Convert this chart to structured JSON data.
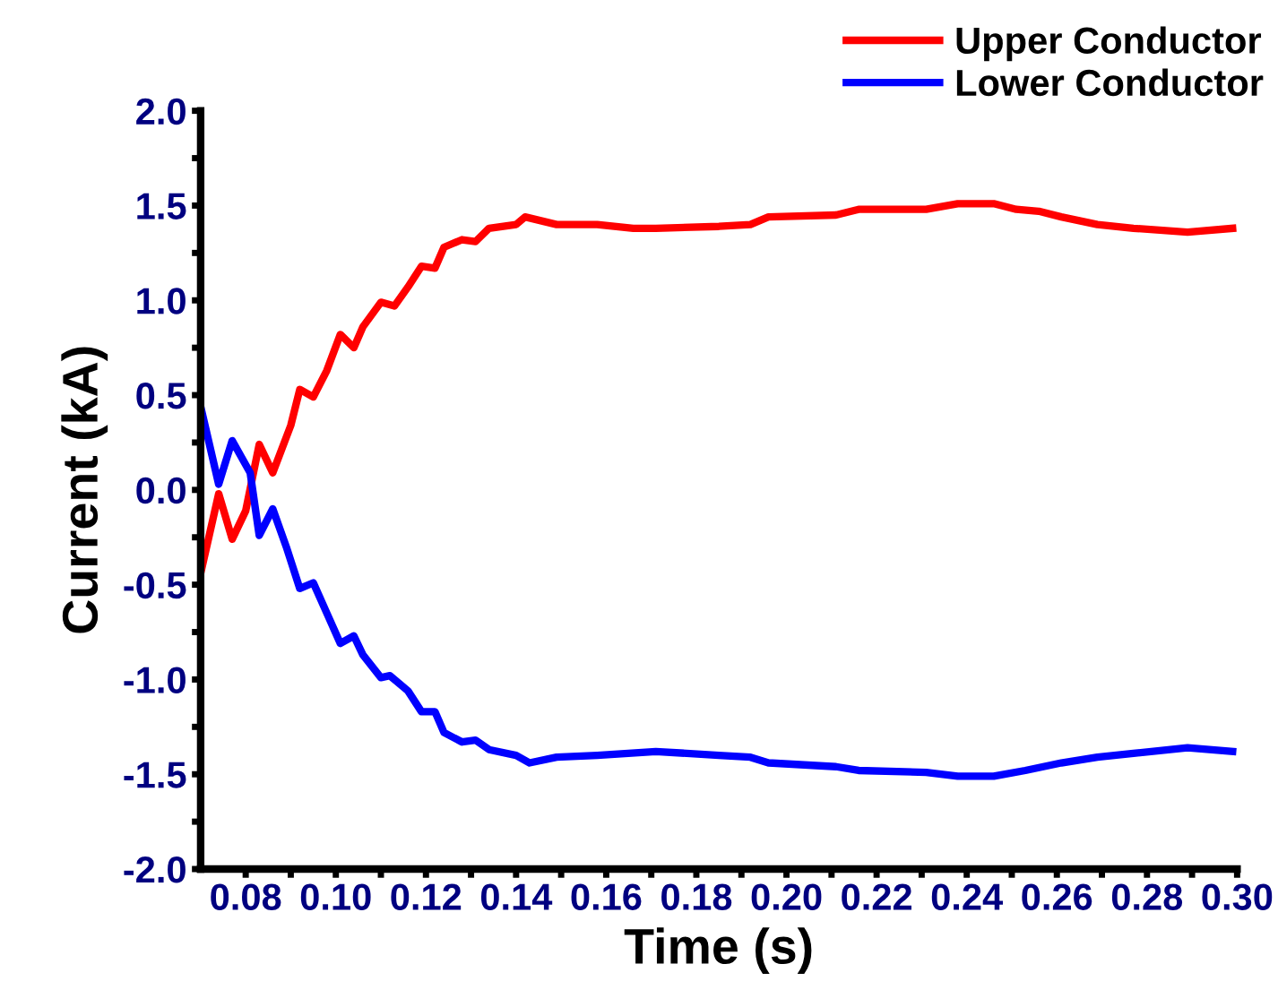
{
  "chart_data": {
    "type": "line",
    "xlabel": "Time (s)",
    "ylabel": "Current (kA)",
    "xlim": [
      0.07,
      0.3
    ],
    "xticks": [
      0.08,
      {
        "value": 0.09,
        "label": null
      },
      "0.10",
      {
        "value": 0.11,
        "label": null
      },
      0.12,
      {
        "value": 0.13,
        "label": null
      },
      0.14,
      {
        "value": 0.15,
        "label": null
      },
      0.16,
      {
        "value": 0.17,
        "label": null
      },
      0.18,
      {
        "value": 0.19,
        "label": null
      },
      {
        "value": 0.2,
        "label": "0.20"
      },
      {
        "value": 0.21,
        "label": null
      },
      0.22,
      {
        "value": 0.23,
        "label": null
      },
      0.24,
      {
        "value": 0.25,
        "label": null
      },
      0.26,
      {
        "value": 0.27,
        "label": null
      },
      0.28,
      {
        "value": 0.29,
        "label": null
      },
      {
        "value": 0.3,
        "label": "0.30"
      }
    ],
    "ylim": [
      -2.0,
      2.0
    ],
    "yticks": [
      {
        "value": -2.0,
        "label": "-2.0"
      },
      {
        "value": -1.75,
        "label": null
      },
      {
        "value": -1.5,
        "label": "-1.5"
      },
      {
        "value": -1.25,
        "label": null
      },
      {
        "value": -1.0,
        "label": "-1.0"
      },
      {
        "value": -0.75,
        "label": null
      },
      {
        "value": -0.5,
        "label": "-0.5"
      },
      {
        "value": -0.25,
        "label": null
      },
      {
        "value": 0.0,
        "label": "0.0"
      },
      {
        "value": 0.25,
        "label": null
      },
      {
        "value": 0.5,
        "label": "0.5"
      },
      {
        "value": 0.75,
        "label": null
      },
      {
        "value": 1.0,
        "label": "1.0"
      },
      {
        "value": 1.25,
        "label": null
      },
      {
        "value": 1.5,
        "label": "1.5"
      },
      {
        "value": 1.75,
        "label": null
      },
      {
        "value": 2.0,
        "label": "2.0"
      }
    ],
    "grid": false,
    "legend": "top right",
    "marker": "none",
    "line_style": "solid",
    "series": [
      {
        "name": "Upper Conductor",
        "color": "#ff0000",
        "x": [
          0.07,
          0.074,
          0.077,
          0.08,
          0.083,
          0.086,
          0.09,
          0.092,
          0.095,
          0.098,
          0.101,
          0.104,
          0.106,
          0.11,
          0.113,
          0.116,
          0.119,
          0.122,
          0.124,
          0.128,
          0.131,
          0.134,
          0.14,
          0.142,
          0.149,
          0.158,
          0.166,
          0.171,
          0.185,
          0.192,
          0.196,
          0.211,
          0.216,
          0.231,
          0.238,
          0.246,
          0.251,
          0.256,
          0.261,
          0.269,
          0.277,
          0.289,
          0.299
        ],
        "values": [
          -0.44,
          -0.02,
          -0.26,
          -0.11,
          0.24,
          0.09,
          0.34,
          0.53,
          0.49,
          0.63,
          0.82,
          0.75,
          0.86,
          0.99,
          0.97,
          1.07,
          1.18,
          1.17,
          1.28,
          1.32,
          1.31,
          1.38,
          1.4,
          1.44,
          1.4,
          1.4,
          1.38,
          1.38,
          1.39,
          1.4,
          1.44,
          1.45,
          1.48,
          1.48,
          1.51,
          1.51,
          1.48,
          1.47,
          1.44,
          1.4,
          1.38,
          1.36,
          1.38
        ]
      },
      {
        "name": "Lower Conductor",
        "color": "#0000ff",
        "x": [
          0.07,
          0.074,
          0.077,
          0.081,
          0.083,
          0.086,
          0.089,
          0.092,
          0.095,
          0.098,
          0.101,
          0.104,
          0.106,
          0.11,
          0.112,
          0.116,
          0.119,
          0.122,
          0.124,
          0.128,
          0.131,
          0.134,
          0.14,
          0.143,
          0.149,
          0.158,
          0.171,
          0.185,
          0.192,
          0.196,
          0.211,
          0.216,
          0.231,
          0.238,
          0.246,
          0.253,
          0.261,
          0.269,
          0.277,
          0.289,
          0.299
        ],
        "values": [
          0.44,
          0.03,
          0.26,
          0.09,
          -0.24,
          -0.1,
          -0.3,
          -0.52,
          -0.49,
          -0.65,
          -0.81,
          -0.77,
          -0.87,
          -0.99,
          -0.98,
          -1.06,
          -1.17,
          -1.17,
          -1.28,
          -1.33,
          -1.32,
          -1.37,
          -1.4,
          -1.44,
          -1.41,
          -1.4,
          -1.38,
          -1.4,
          -1.41,
          -1.44,
          -1.46,
          -1.48,
          -1.49,
          -1.51,
          -1.51,
          -1.48,
          -1.44,
          -1.41,
          -1.39,
          -1.36,
          -1.38
        ]
      }
    ]
  }
}
